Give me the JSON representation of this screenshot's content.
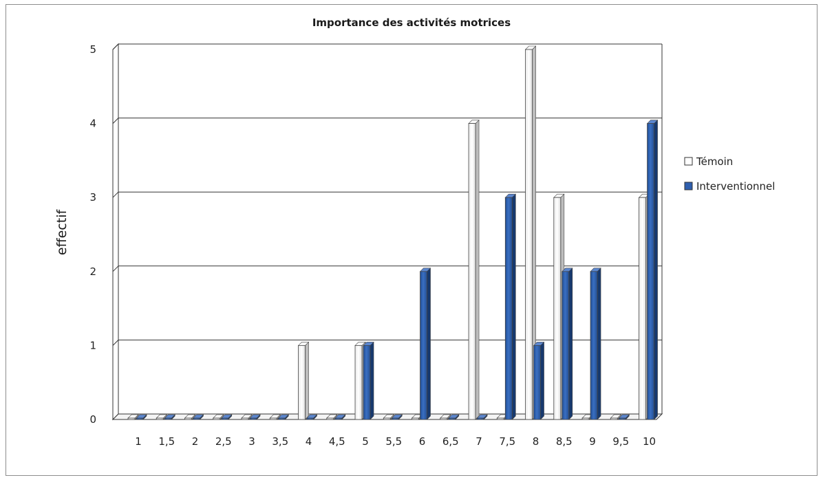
{
  "chart_data": {
    "type": "bar",
    "title": "Importance des activités motrices",
    "xlabel": "",
    "ylabel": "effectif",
    "ylim": [
      0,
      5
    ],
    "yticks": [
      "0",
      "1",
      "2",
      "3",
      "4",
      "5"
    ],
    "grid": true,
    "legend_position": "right",
    "categories": [
      "1",
      "1,5",
      "2",
      "2,5",
      "3",
      "3,5",
      "4",
      "4,5",
      "5",
      "5,5",
      "6",
      "6,5",
      "7",
      "7,5",
      "8",
      "8,5",
      "9",
      "9,5",
      "10"
    ],
    "series": [
      {
        "name": "Témoin",
        "color": "#ffffff",
        "values": [
          0,
          0,
          0,
          0,
          0,
          0,
          1,
          0,
          1,
          0,
          0,
          0,
          4,
          0,
          5,
          3,
          0,
          0,
          3
        ]
      },
      {
        "name": "Interventionnel",
        "color": "#2f5fae",
        "values": [
          0,
          0,
          0,
          0,
          0,
          0,
          0,
          0,
          1,
          0,
          2,
          0,
          0,
          3,
          1,
          2,
          2,
          0,
          4
        ]
      }
    ]
  }
}
